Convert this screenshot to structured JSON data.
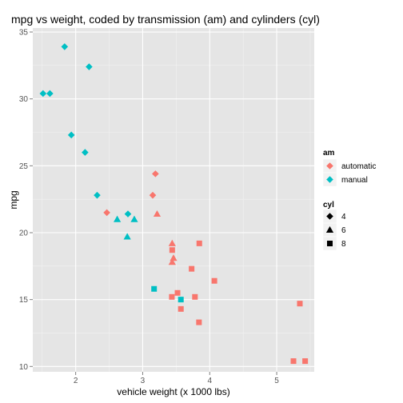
{
  "chart_data": {
    "type": "scatter",
    "title": "mpg vs weight, coded by transmission (am) and cylinders (cyl)",
    "xlabel": "vehicle weight (x 1000 lbs)",
    "ylabel": "mpg",
    "xlim": [
      1.36,
      5.56
    ],
    "ylim": [
      9.6,
      35.3
    ],
    "x_ticks": [
      2,
      3,
      4,
      5
    ],
    "y_ticks": [
      10,
      15,
      20,
      25,
      30,
      35
    ],
    "grid": true,
    "legend_position": "right",
    "legends": [
      {
        "title": "am",
        "entries": [
          {
            "label": "automatic",
            "color": "#F8766D",
            "shape": "diamond"
          },
          {
            "label": "manual",
            "color": "#00BFC4",
            "shape": "diamond"
          }
        ]
      },
      {
        "title": "cyl",
        "entries": [
          {
            "label": "4",
            "shape": "diamond"
          },
          {
            "label": "6",
            "shape": "triangle"
          },
          {
            "label": "8",
            "shape": "square"
          }
        ]
      }
    ],
    "colors": {
      "automatic": "#F8766D",
      "manual": "#00BFC4"
    },
    "shapes": {
      "4": "diamond",
      "6": "triangle",
      "8": "square"
    },
    "points": [
      {
        "x": 2.62,
        "y": 21.0,
        "am": "manual",
        "cyl": "6"
      },
      {
        "x": 2.875,
        "y": 21.0,
        "am": "manual",
        "cyl": "6"
      },
      {
        "x": 2.32,
        "y": 22.8,
        "am": "manual",
        "cyl": "4"
      },
      {
        "x": 3.215,
        "y": 21.4,
        "am": "automatic",
        "cyl": "6"
      },
      {
        "x": 3.44,
        "y": 18.7,
        "am": "automatic",
        "cyl": "8"
      },
      {
        "x": 3.46,
        "y": 18.1,
        "am": "automatic",
        "cyl": "6"
      },
      {
        "x": 3.57,
        "y": 14.3,
        "am": "automatic",
        "cyl": "8"
      },
      {
        "x": 3.19,
        "y": 24.4,
        "am": "automatic",
        "cyl": "4"
      },
      {
        "x": 3.15,
        "y": 22.8,
        "am": "automatic",
        "cyl": "4"
      },
      {
        "x": 3.44,
        "y": 19.2,
        "am": "automatic",
        "cyl": "6"
      },
      {
        "x": 3.44,
        "y": 17.8,
        "am": "automatic",
        "cyl": "6"
      },
      {
        "x": 4.07,
        "y": 16.4,
        "am": "automatic",
        "cyl": "8"
      },
      {
        "x": 3.73,
        "y": 17.3,
        "am": "automatic",
        "cyl": "8"
      },
      {
        "x": 3.78,
        "y": 15.2,
        "am": "automatic",
        "cyl": "8"
      },
      {
        "x": 5.25,
        "y": 10.4,
        "am": "automatic",
        "cyl": "8"
      },
      {
        "x": 5.424,
        "y": 10.4,
        "am": "automatic",
        "cyl": "8"
      },
      {
        "x": 5.345,
        "y": 14.7,
        "am": "automatic",
        "cyl": "8"
      },
      {
        "x": 2.2,
        "y": 32.4,
        "am": "manual",
        "cyl": "4"
      },
      {
        "x": 1.615,
        "y": 30.4,
        "am": "manual",
        "cyl": "4"
      },
      {
        "x": 1.835,
        "y": 33.9,
        "am": "manual",
        "cyl": "4"
      },
      {
        "x": 2.465,
        "y": 21.5,
        "am": "automatic",
        "cyl": "4"
      },
      {
        "x": 3.52,
        "y": 15.5,
        "am": "automatic",
        "cyl": "8"
      },
      {
        "x": 3.435,
        "y": 15.2,
        "am": "automatic",
        "cyl": "8"
      },
      {
        "x": 3.84,
        "y": 13.3,
        "am": "automatic",
        "cyl": "8"
      },
      {
        "x": 3.845,
        "y": 19.2,
        "am": "automatic",
        "cyl": "8"
      },
      {
        "x": 1.935,
        "y": 27.3,
        "am": "manual",
        "cyl": "4"
      },
      {
        "x": 2.14,
        "y": 26.0,
        "am": "manual",
        "cyl": "4"
      },
      {
        "x": 1.513,
        "y": 30.4,
        "am": "manual",
        "cyl": "4"
      },
      {
        "x": 3.17,
        "y": 15.8,
        "am": "manual",
        "cyl": "8"
      },
      {
        "x": 2.77,
        "y": 19.7,
        "am": "manual",
        "cyl": "6"
      },
      {
        "x": 3.57,
        "y": 15.0,
        "am": "manual",
        "cyl": "8"
      },
      {
        "x": 2.78,
        "y": 21.4,
        "am": "manual",
        "cyl": "4"
      }
    ]
  }
}
